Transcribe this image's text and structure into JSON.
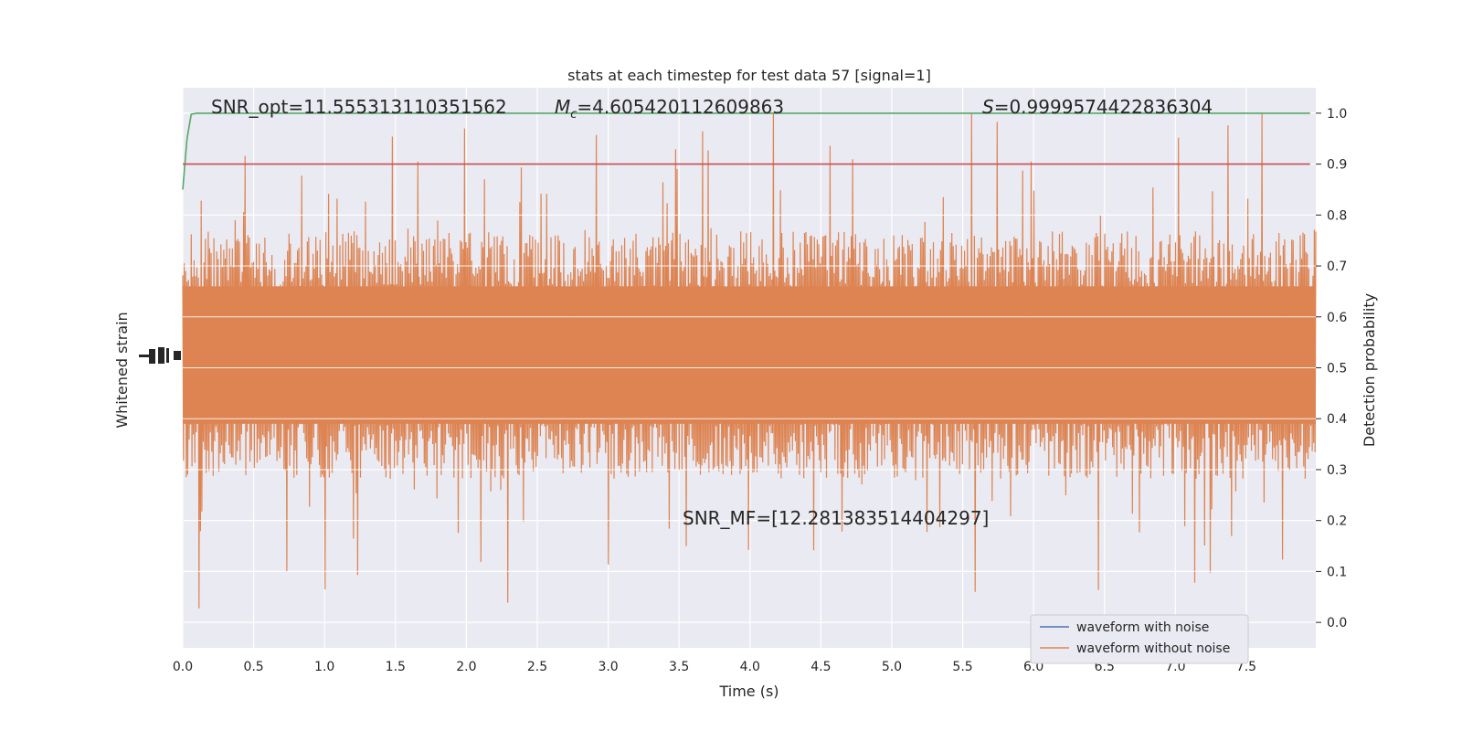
{
  "chart_data": {
    "type": "line",
    "title": "stats at each timestep for test data 57 [signal=1]",
    "xlabel": "Time (s)",
    "ylabel_left": "Whitened strain",
    "ylabel_right": "Detection probability",
    "xlim": [
      0.0,
      7.99
    ],
    "ylim_right": [
      -0.05,
      1.05
    ],
    "x_ticks": [
      "0.0",
      "0.5",
      "1.0",
      "1.5",
      "2.0",
      "2.5",
      "3.0",
      "3.5",
      "4.0",
      "4.5",
      "5.0",
      "5.5",
      "6.0",
      "6.5",
      "7.0",
      "7.5"
    ],
    "y_ticks_right": [
      "0.0",
      "0.1",
      "0.2",
      "0.3",
      "0.4",
      "0.5",
      "0.6",
      "0.7",
      "0.8",
      "0.9",
      "1.0"
    ],
    "grid": true,
    "legend_location": "lower-right",
    "annotations": {
      "snr_opt": "SNR_opt=11.555313110351562",
      "mc_symbol": "M",
      "mc_sub": "c",
      "mc_value": "=4.605420112609863",
      "s_symbol": "S",
      "s_value": "=0.9999574422836304",
      "snr_mf": "SNR_MF=[12.281383514404297]"
    },
    "series": [
      {
        "name": "waveform with noise",
        "color": "#4c72b0",
        "description_values": "whitened strain, mostly hidden behind orange trace"
      },
      {
        "name": "waveform without noise",
        "color": "#dd8452",
        "envelope_core": [
          0.39,
          0.66
        ],
        "envelope_extreme": [
          0.0,
          1.0
        ]
      },
      {
        "color": "#55a868",
        "x": [
          0.0,
          0.03,
          0.06,
          0.1,
          0.2,
          7.95
        ],
        "y": [
          0.85,
          0.95,
          0.998,
          1.0,
          1.0,
          1.0
        ]
      },
      {
        "color": "#c44e52",
        "x": [
          0.0,
          7.95
        ],
        "y": [
          0.9,
          0.9
        ]
      }
    ]
  },
  "theme": {
    "plot_background": "#eaeaf2",
    "grid_color": "#ffffff"
  }
}
